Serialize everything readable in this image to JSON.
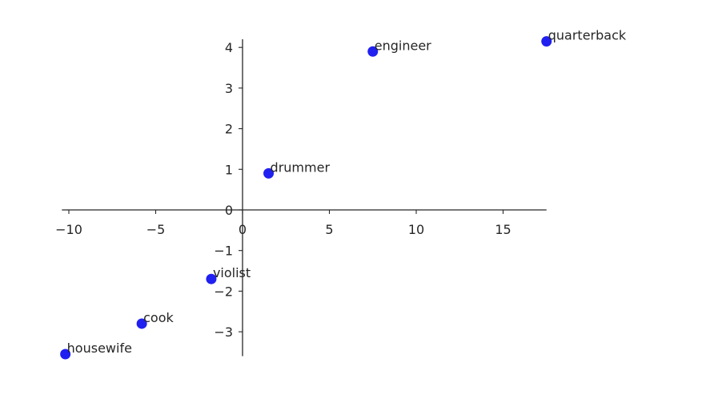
{
  "chart_data": {
    "type": "scatter",
    "title": "",
    "xlabel": "",
    "ylabel": "",
    "xlim": [
      -10.4,
      17.5
    ],
    "ylim": [
      -3.6,
      4.2
    ],
    "grid": false,
    "spines": "centered-at-zero",
    "x_ticks": [
      -10,
      -5,
      0,
      5,
      10,
      15
    ],
    "x_tick_labels": [
      "−10",
      "−5",
      "0",
      "5",
      "10",
      "15"
    ],
    "y_ticks": [
      -3,
      -2,
      -1,
      0,
      1,
      2,
      3,
      4
    ],
    "y_tick_labels": [
      "−3",
      "−2",
      "−1",
      "0",
      "1",
      "2",
      "3",
      "4"
    ],
    "point_color": "#2020f0",
    "points": [
      {
        "label": "quarterback",
        "x": 17.5,
        "y": 4.15
      },
      {
        "label": "engineer",
        "x": 7.5,
        "y": 3.9
      },
      {
        "label": "drummer",
        "x": 1.5,
        "y": 0.9
      },
      {
        "label": "violist",
        "x": -1.8,
        "y": -1.7
      },
      {
        "label": "cook",
        "x": -5.8,
        "y": -2.8
      },
      {
        "label": "housewife",
        "x": -10.2,
        "y": -3.55
      }
    ]
  }
}
